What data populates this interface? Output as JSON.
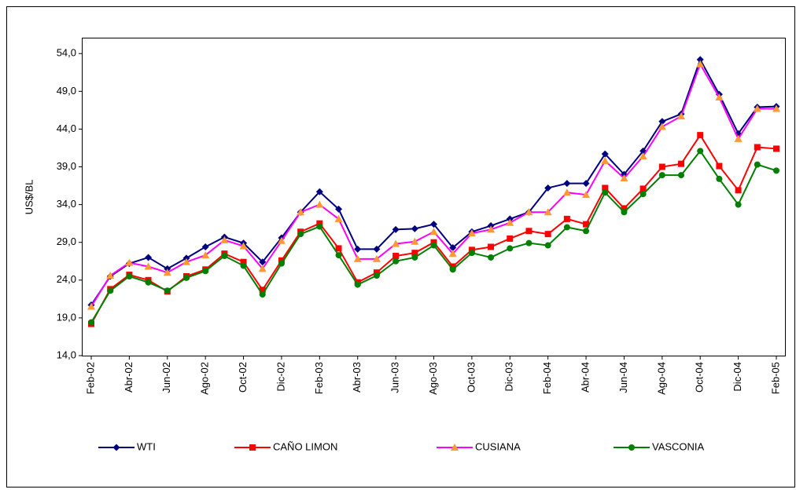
{
  "chart_data": {
    "type": "line",
    "ylabel": "US$/BL",
    "categories": [
      "Feb-02",
      null,
      "Abr-02",
      null,
      "Jun-02",
      null,
      "Ago-02",
      null,
      "Oct-02",
      null,
      "Dic-02",
      null,
      "Feb-03",
      null,
      "Abr-03",
      null,
      "Jun-03",
      null,
      "Ago-03",
      null,
      "Oct-03",
      null,
      "Dic-03",
      null,
      "Feb-04",
      null,
      "Abr-04",
      null,
      "Jun-04",
      null,
      "Ago-04",
      null,
      "Oct-04",
      null,
      "Dic-04",
      null,
      "Feb-05"
    ],
    "ylim": [
      14,
      56
    ],
    "yticks": [
      {
        "value": 14,
        "label": "14,0"
      },
      {
        "value": 19,
        "label": "19,0"
      },
      {
        "value": 24,
        "label": "24,0"
      },
      {
        "value": 29,
        "label": "29,0"
      },
      {
        "value": 34,
        "label": "34,0"
      },
      {
        "value": 39,
        "label": "39,0"
      },
      {
        "value": 44,
        "label": "44,0"
      },
      {
        "value": 49,
        "label": "49,0"
      },
      {
        "value": 54,
        "label": "54,0"
      }
    ],
    "grid": false,
    "series": [
      {
        "name": "WTI",
        "color": "#000080",
        "marker": "diamond",
        "marker_color": "#000080",
        "values": [
          20.7,
          24.5,
          26.2,
          27.0,
          25.5,
          26.9,
          28.4,
          29.7,
          28.9,
          26.4,
          29.6,
          33.0,
          35.7,
          33.4,
          28.1,
          28.1,
          30.7,
          30.8,
          31.4,
          28.3,
          30.4,
          31.2,
          32.1,
          33.0,
          36.2,
          36.8,
          36.8,
          40.7,
          38.0,
          41.1,
          45.0,
          46.0,
          53.2,
          48.6,
          43.4,
          46.9,
          47.0
        ]
      },
      {
        "name": "CAÑO LIMON",
        "color": "#ff0000",
        "marker": "square",
        "marker_color": "#ff0000",
        "values": [
          18.2,
          22.8,
          24.7,
          24.0,
          22.5,
          24.5,
          25.4,
          27.5,
          26.4,
          22.7,
          26.6,
          30.4,
          31.5,
          28.2,
          23.7,
          25.0,
          27.2,
          27.6,
          29.0,
          25.8,
          28.0,
          28.4,
          29.5,
          30.5,
          30.1,
          32.1,
          31.4,
          36.2,
          33.5,
          36.1,
          39.0,
          39.4,
          43.2,
          39.1,
          35.9,
          41.6,
          41.4
        ]
      },
      {
        "name": "CUSIANA",
        "color": "#ff00ff",
        "marker": "triangle",
        "marker_color": "#ff9933",
        "values": [
          20.5,
          24.6,
          26.3,
          25.8,
          25.0,
          26.4,
          27.3,
          29.3,
          28.5,
          25.5,
          29.2,
          33.0,
          34.0,
          32.1,
          26.8,
          26.8,
          28.8,
          29.1,
          30.4,
          27.5,
          30.2,
          30.7,
          31.6,
          33.0,
          33.0,
          35.6,
          35.3,
          39.8,
          37.5,
          40.4,
          44.3,
          45.7,
          52.6,
          48.2,
          42.7,
          46.7,
          46.7
        ]
      },
      {
        "name": "VASCONIA",
        "color": "#008000",
        "marker": "circle",
        "marker_color": "#008000",
        "values": [
          18.4,
          22.6,
          24.5,
          23.7,
          22.6,
          24.3,
          25.2,
          27.2,
          25.9,
          22.1,
          26.2,
          30.1,
          31.1,
          27.3,
          23.4,
          24.6,
          26.5,
          27.0,
          28.6,
          25.4,
          27.6,
          27.0,
          28.2,
          28.9,
          28.6,
          31.0,
          30.5,
          35.6,
          33.0,
          35.4,
          37.9,
          37.9,
          41.1,
          37.4,
          34.0,
          39.3,
          38.5
        ]
      }
    ]
  }
}
